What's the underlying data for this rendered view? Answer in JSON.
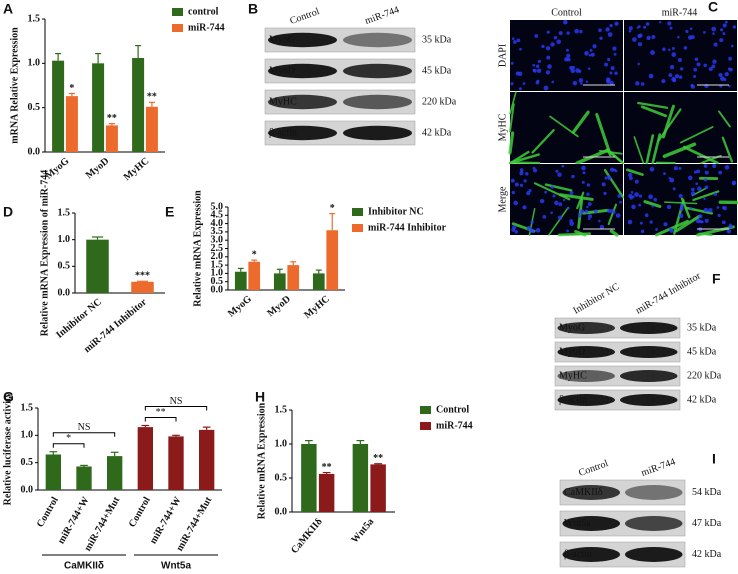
{
  "chart_data": [
    {
      "type": "bar",
      "panel": "A",
      "ylabel": "mRNA Relative Expression",
      "categories": [
        "MyoG",
        "MyoD",
        "MyHC"
      ],
      "series": [
        {
          "name": "control",
          "color": "#2f6a1c",
          "values": [
            1.03,
            1.0,
            1.06
          ],
          "errors": [
            0.08,
            0.11,
            0.14
          ],
          "annotations": [
            null,
            null,
            null
          ]
        },
        {
          "name": "miR-744",
          "color": "#ec6a2c",
          "values": [
            0.63,
            0.3,
            0.51
          ],
          "errors": [
            0.03,
            0.02,
            0.05
          ],
          "annotations": [
            "*",
            "**",
            "**"
          ]
        }
      ],
      "ylim": [
        0,
        1.5
      ],
      "yticks": [
        {
          "value": 0,
          "label": "0.0"
        },
        0.5,
        {
          "value": 1,
          "label": "1.0"
        },
        1.5
      ]
    },
    {
      "type": "bar",
      "panel": "D",
      "ylabel": "Relative mRNA Expression of miR-744",
      "categories": [
        "Inhibitor NC",
        "miR-744 Inhibitor"
      ],
      "series": [
        {
          "colors": [
            "#2f6a1c",
            "#ec6a2c"
          ],
          "values": [
            1.0,
            0.21
          ],
          "errors": [
            0.05,
            0.01
          ],
          "annotations": [
            null,
            "***"
          ]
        }
      ],
      "ylim": [
        0,
        1.5
      ],
      "yticks": [
        {
          "value": 0,
          "label": "0.0"
        },
        0.5,
        {
          "value": 1,
          "label": "1.0"
        },
        1.5
      ]
    },
    {
      "type": "bar",
      "panel": "E",
      "ylabel": "Relative mRNA Expression",
      "categories": [
        "MyoG",
        "MyoD",
        "MyHC"
      ],
      "series": [
        {
          "name": "Inhibitor NC",
          "color": "#2f6a1c",
          "values": [
            1.1,
            1.0,
            1.0
          ],
          "errors": [
            0.2,
            0.25,
            0.2
          ],
          "annotations": [
            null,
            null,
            null
          ]
        },
        {
          "name": "miR-744 Inhibitor",
          "color": "#ec6a2c",
          "values": [
            1.7,
            1.5,
            3.6
          ],
          "errors": [
            0.1,
            0.2,
            1.0
          ],
          "annotations": [
            "*",
            null,
            "*"
          ]
        }
      ],
      "ylim": [
        0,
        5
      ],
      "yticks": [
        {
          "value": 0,
          "label": "0.0"
        },
        0.5,
        {
          "value": 1,
          "label": "1.0"
        },
        1.5,
        {
          "value": 2,
          "label": "2.0"
        },
        2.5,
        {
          "value": 3,
          "label": "3.0"
        },
        3.5,
        {
          "value": 4,
          "label": "4.0"
        },
        4.5,
        {
          "value": 5,
          "label": "5.0"
        }
      ]
    },
    {
      "type": "bar",
      "panel": "G",
      "ylabel": "Relative luciferase activity",
      "categories": [
        "Control",
        "miR-744+W",
        "miR-744+Mut",
        "Control",
        "miR-744+W",
        "miR-744+Mut"
      ],
      "groups": [
        "CaMKIIδ",
        "Wnt5a"
      ],
      "series": [
        {
          "colors": [
            "#2f6a1c",
            "#2f6a1c",
            "#2f6a1c",
            "#8b1a1a",
            "#8b1a1a",
            "#8b1a1a"
          ],
          "values": [
            0.65,
            0.43,
            0.62,
            1.15,
            0.98,
            1.1
          ],
          "errors": [
            0.05,
            0.02,
            0.07,
            0.03,
            0.02,
            0.05
          ]
        }
      ],
      "comparisons": [
        "*",
        "NS",
        "**",
        "NS"
      ],
      "ylim": [
        0,
        1.5
      ],
      "yticks": [
        {
          "value": 0,
          "label": "0.0"
        },
        0.5,
        {
          "value": 1,
          "label": "1.0"
        },
        1.5
      ]
    },
    {
      "type": "bar",
      "panel": "H",
      "ylabel": "Relative mRNA Expression",
      "categories": [
        "CaMKIIδ",
        "Wnt5a"
      ],
      "series": [
        {
          "name": "Control",
          "color": "#2f6a1c",
          "values": [
            1.0,
            1.0
          ],
          "errors": [
            0.05,
            0.05
          ],
          "annotations": [
            null,
            null
          ]
        },
        {
          "name": "miR-744",
          "color": "#8b1a1a",
          "values": [
            0.56,
            0.7
          ],
          "errors": [
            0.02,
            0.01
          ],
          "annotations": [
            "**",
            "**"
          ]
        }
      ],
      "ylim": [
        0,
        1.5
      ],
      "yticks": [
        {
          "value": 0,
          "label": "0.0"
        },
        0.5,
        {
          "value": 1,
          "label": "1.0"
        },
        1.5
      ]
    }
  ],
  "blots": [
    {
      "panel": "B",
      "lanes": [
        "Control",
        "miR-744"
      ],
      "rows": [
        {
          "name": "MyoG",
          "size": "35 kDa"
        },
        {
          "name": "MyoD",
          "size": "45 kDa"
        },
        {
          "name": "MyHC",
          "size": "220 kDa"
        },
        {
          "name": "β-actin",
          "size": "42 kDa"
        }
      ]
    },
    {
      "panel": "F",
      "lanes": [
        "Inhibitor NC",
        "miR-744 Inhibitor"
      ],
      "rows": [
        {
          "name": "MyoG",
          "size": "35 kDa"
        },
        {
          "name": "MyoD",
          "size": "45 kDa"
        },
        {
          "name": "MyHC",
          "size": "220 kDa"
        },
        {
          "name": "β-actin",
          "size": "42 kDa"
        }
      ]
    },
    {
      "panel": "I",
      "lanes": [
        "Control",
        "miR-744"
      ],
      "rows": [
        {
          "name": "CaMKIIδ",
          "size": "54 kDa"
        },
        {
          "name": "Wnt5a",
          "size": "47 kDa"
        },
        {
          "name": "β-actin",
          "size": "42 kDa"
        }
      ]
    }
  ],
  "images": {
    "panel": "C",
    "columns": [
      "Control",
      "miR-744"
    ],
    "rows": [
      "DAPI",
      "MyHC",
      "Merge"
    ]
  }
}
